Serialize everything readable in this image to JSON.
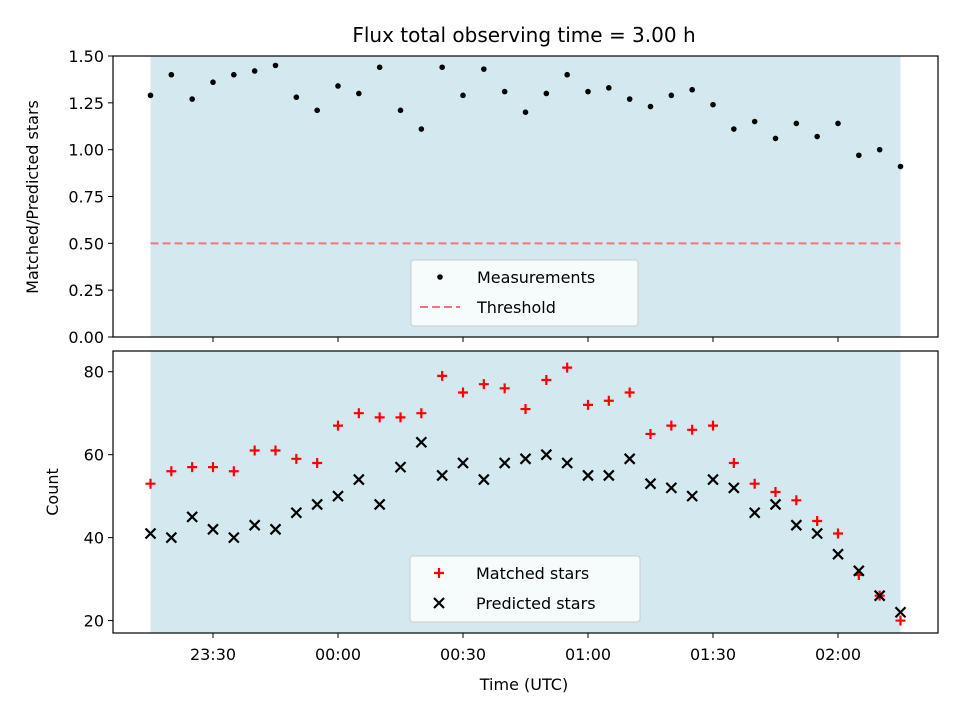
{
  "chart_data": [
    {
      "type": "scatter",
      "title": "Flux total observing time = 3.00 h",
      "ylabel": "Matched/Predicted stars",
      "ylim": [
        0,
        1.5
      ],
      "yticks": [
        "0.00",
        "0.25",
        "0.50",
        "0.75",
        "1.00",
        "1.25",
        "1.50"
      ],
      "ytick_values": [
        0,
        0.25,
        0.5,
        0.75,
        1.0,
        1.25,
        1.5
      ],
      "threshold": 0.5,
      "shaded_span": [
        "23:15",
        "02:15"
      ],
      "shade_color": "#d3e9ef",
      "legend_position": "lower center",
      "legend": [
        {
          "label": "Measurements",
          "marker": "dot",
          "color": "#000000"
        },
        {
          "label": "Threshold",
          "marker": "dashed-line",
          "color": "#f07878"
        }
      ],
      "x": [
        "23:15",
        "23:20",
        "23:25",
        "23:30",
        "23:35",
        "23:40",
        "23:45",
        "23:50",
        "23:55",
        "00:00",
        "00:05",
        "00:10",
        "00:15",
        "00:20",
        "00:25",
        "00:30",
        "00:35",
        "00:40",
        "00:45",
        "00:50",
        "00:55",
        "01:00",
        "01:05",
        "01:10",
        "01:15",
        "01:20",
        "01:25",
        "01:30",
        "01:35",
        "01:40",
        "01:45",
        "01:50",
        "01:55",
        "02:00",
        "02:05",
        "02:10",
        "02:15"
      ],
      "series": [
        {
          "name": "Measurements",
          "values": [
            1.29,
            1.4,
            1.27,
            1.36,
            1.4,
            1.42,
            1.45,
            1.28,
            1.21,
            1.34,
            1.3,
            1.44,
            1.21,
            1.11,
            1.44,
            1.29,
            1.43,
            1.31,
            1.2,
            1.3,
            1.4,
            1.31,
            1.33,
            1.27,
            1.23,
            1.29,
            1.32,
            1.24,
            1.11,
            1.15,
            1.06,
            1.14,
            1.07,
            1.14,
            0.97,
            1.0,
            0.91
          ]
        }
      ]
    },
    {
      "type": "scatter",
      "xlabel": "Time (UTC)",
      "ylabel": "Count",
      "ylim": [
        17,
        85
      ],
      "yticks": [
        "20",
        "40",
        "60",
        "80"
      ],
      "ytick_values": [
        20,
        40,
        60,
        80
      ],
      "xticks": [
        "23:30",
        "00:00",
        "00:30",
        "01:00",
        "01:30",
        "02:00"
      ],
      "xtick_values": [
        "23:30",
        "00:00",
        "00:30",
        "01:00",
        "01:30",
        "02:00"
      ],
      "xlim": [
        "23:06",
        "02:24"
      ],
      "shaded_span": [
        "23:15",
        "02:15"
      ],
      "shade_color": "#d3e9ef",
      "legend_position": "lower center",
      "legend": [
        {
          "label": "Matched stars",
          "marker": "plus",
          "color": "#ff0000"
        },
        {
          "label": "Predicted stars",
          "marker": "x",
          "color": "#000000"
        }
      ],
      "x": [
        "23:15",
        "23:20",
        "23:25",
        "23:30",
        "23:35",
        "23:40",
        "23:45",
        "23:50",
        "23:55",
        "00:00",
        "00:05",
        "00:10",
        "00:15",
        "00:20",
        "00:25",
        "00:30",
        "00:35",
        "00:40",
        "00:45",
        "00:50",
        "00:55",
        "01:00",
        "01:05",
        "01:10",
        "01:15",
        "01:20",
        "01:25",
        "01:30",
        "01:35",
        "01:40",
        "01:45",
        "01:50",
        "01:55",
        "02:00",
        "02:05",
        "02:10",
        "02:15"
      ],
      "series": [
        {
          "name": "Matched stars",
          "values": [
            53,
            56,
            57,
            57,
            56,
            61,
            61,
            59,
            58,
            67,
            70,
            69,
            69,
            70,
            79,
            75,
            77,
            76,
            71,
            78,
            81,
            72,
            73,
            75,
            65,
            67,
            66,
            67,
            58,
            53,
            51,
            49,
            44,
            41,
            31,
            26,
            20
          ]
        },
        {
          "name": "Predicted stars",
          "values": [
            41,
            40,
            45,
            42,
            40,
            43,
            42,
            46,
            48,
            50,
            54,
            48,
            57,
            63,
            55,
            58,
            54,
            58,
            59,
            60,
            58,
            55,
            55,
            59,
            53,
            52,
            50,
            54,
            52,
            46,
            48,
            43,
            41,
            36,
            32,
            26,
            22
          ]
        }
      ]
    }
  ]
}
